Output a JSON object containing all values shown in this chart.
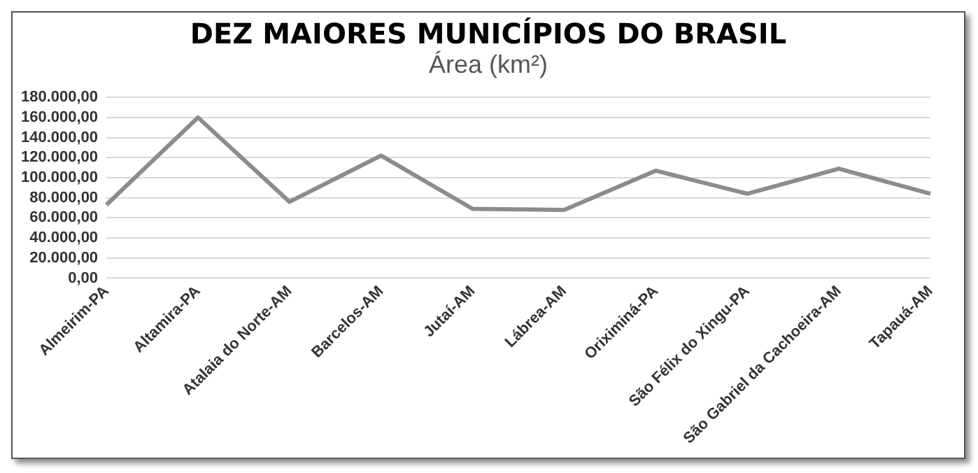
{
  "chart_data": {
    "type": "line",
    "title": "DEZ MAIORES MUNICÍPIOS DO BRASIL",
    "subtitle": "Área (km²)",
    "categories": [
      "Almeirim-PA",
      "Altamira-PA",
      "Atalaia do Norte-AM",
      "Barcelos-AM",
      "Jutaí-AM",
      "Lábrea-AM",
      "Oriximiná-PA",
      "São Félix do Xingu-PA",
      "São Gabriel da Cachoeira-AM",
      "Tapauá-AM"
    ],
    "series": [
      {
        "color": "#8c8c8c",
        "values": [
          73000,
          160000,
          76000,
          122000,
          69000,
          68000,
          107000,
          84000,
          109000,
          84000
        ]
      }
    ],
    "ylim": [
      0,
      180000
    ],
    "yticks": [
      {
        "value": 0,
        "label": "0,00"
      },
      {
        "value": 20000,
        "label": "20.000,00"
      },
      {
        "value": 40000,
        "label": "40.000,00"
      },
      {
        "value": 60000,
        "label": "60.000,00"
      },
      {
        "value": 80000,
        "label": "80.000,00"
      },
      {
        "value": 100000,
        "label": "100.000,00"
      },
      {
        "value": 120000,
        "label": "120.000,00"
      },
      {
        "value": 140000,
        "label": "140.000,00"
      },
      {
        "value": 160000,
        "label": "160.000,00"
      },
      {
        "value": 180000,
        "label": "180.000,00"
      }
    ],
    "grid": "y",
    "legend": false,
    "marker": "none",
    "line_style": "solid"
  }
}
